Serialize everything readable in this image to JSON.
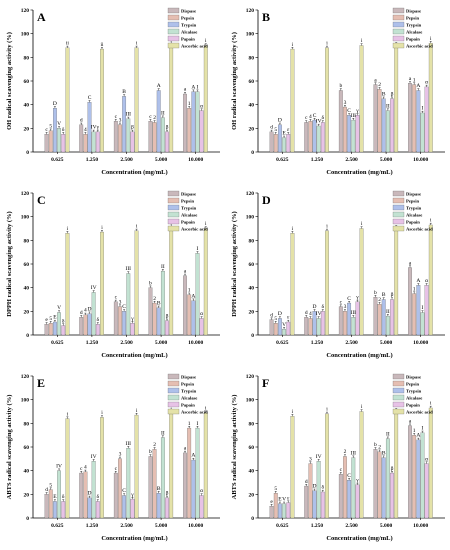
{
  "figure": {
    "x_axis_title": "Concentration (mg/mL)",
    "legend": [
      "Dispase",
      "Pepsin",
      "Trypsin",
      "Alcalase",
      "Papain",
      "Ascorbic acid"
    ]
  },
  "colors": {
    "Dispase": "#c9b8bb",
    "Pepsin": "#e5beb2",
    "Trypsin": "#aec0ea",
    "Alcalase": "#c2e2d2",
    "Papain": "#e7c2e6",
    "Ascorbic acid": "#e4e2a8"
  },
  "chart_data": [
    {
      "type": "bar",
      "panel_label": "A",
      "ylabel": "OH radical scavenging activity (%)",
      "categories": [
        "0.625",
        "1.250",
        "2.500",
        "5.000",
        "10.000"
      ],
      "ylim": [
        0,
        120
      ],
      "yticks": [
        0,
        20,
        40,
        60,
        80,
        100,
        120
      ],
      "series": [
        {
          "name": "Dispase",
          "values": [
            15,
            23,
            26,
            26,
            49
          ],
          "labels": [
            "c",
            "d",
            "c",
            "c",
            "a"
          ]
        },
        {
          "name": "Pepsin",
          "values": [
            18,
            15,
            23,
            25,
            37
          ],
          "labels": [
            "5",
            "4",
            "3",
            "2",
            "1"
          ]
        },
        {
          "name": "Trypsin",
          "values": [
            37,
            42,
            47,
            52,
            51
          ],
          "labels": [
            "D",
            "C",
            "B",
            "A",
            "A"
          ]
        },
        {
          "name": "Alcalase",
          "values": [
            20,
            17,
            28,
            29,
            51
          ],
          "labels": [
            "V",
            "IV",
            "III",
            "II",
            "I"
          ]
        },
        {
          "name": "Papain",
          "values": [
            15,
            17,
            17,
            17,
            35
          ],
          "labels": [
            "δ",
            "γ",
            "β",
            "β",
            "α"
          ]
        },
        {
          "name": "Ascorbic acid",
          "values": [
            88,
            87,
            88,
            89,
            90
          ],
          "labels": [
            "ii",
            "ii",
            "i",
            "i",
            "i"
          ]
        }
      ]
    },
    {
      "type": "bar",
      "panel_label": "B",
      "ylabel": "OH radical scavenging activity (%)",
      "categories": [
        "0.625",
        "1.250",
        "2.500",
        "5.000",
        "10.000"
      ],
      "ylim": [
        0,
        120
      ],
      "yticks": [
        0,
        20,
        40,
        60,
        80,
        100,
        120
      ],
      "series": [
        {
          "name": "Dispase",
          "values": [
            17,
            25,
            52,
            57,
            58
          ],
          "labels": [
            "d",
            "c",
            "b",
            "a",
            "a"
          ]
        },
        {
          "name": "Pepsin",
          "values": [
            15,
            26,
            38,
            53,
            57
          ],
          "labels": [
            "5",
            "4",
            "3",
            "2",
            "1"
          ]
        },
        {
          "name": "Trypsin",
          "values": [
            23,
            27,
            31,
            45,
            52
          ],
          "labels": [
            "D",
            "C",
            "C",
            "B",
            "A"
          ]
        },
        {
          "name": "Alcalase",
          "values": [
            12,
            22,
            27,
            35,
            33
          ],
          "labels": [
            "E",
            "IV",
            "III",
            "II",
            "I"
          ]
        },
        {
          "name": "Papain",
          "values": [
            15,
            25,
            31,
            45,
            55
          ],
          "labels": [
            "ε",
            "δ",
            "γ",
            "β",
            "α"
          ]
        },
        {
          "name": "Ascorbic acid",
          "values": [
            87,
            88,
            90,
            91,
            92
          ],
          "labels": [
            "i",
            "i",
            "i",
            "i",
            "i"
          ]
        }
      ]
    },
    {
      "type": "bar",
      "panel_label": "C",
      "ylabel": "DPPH radical scavenging activity (%)",
      "categories": [
        "0.625",
        "1.250",
        "2.500",
        "5.000",
        "10.000"
      ],
      "ylim": [
        0,
        120
      ],
      "yticks": [
        0,
        20,
        40,
        60,
        80,
        100,
        120
      ],
      "series": [
        {
          "name": "Dispase",
          "values": [
            9,
            15,
            28,
            40,
            50
          ],
          "labels": [
            "e",
            "d",
            "c",
            "b",
            "a"
          ]
        },
        {
          "name": "Pepsin",
          "values": [
            10,
            17,
            24,
            27,
            34
          ],
          "labels": [
            "5",
            "4",
            "3",
            "2",
            "1"
          ]
        },
        {
          "name": "Trypsin",
          "values": [
            11,
            18,
            20,
            23,
            29
          ],
          "labels": [
            "E",
            "D",
            "C",
            "B",
            "A"
          ]
        },
        {
          "name": "Alcalase",
          "values": [
            19,
            36,
            52,
            54,
            69
          ],
          "labels": [
            "V",
            "IV",
            "III",
            "II",
            "I"
          ]
        },
        {
          "name": "Papain",
          "values": [
            8,
            9,
            10,
            12,
            14
          ],
          "labels": [
            "δ",
            "δ",
            "γ",
            "β",
            "α"
          ]
        },
        {
          "name": "Ascorbic acid",
          "values": [
            86,
            87,
            88,
            89,
            90
          ],
          "labels": [
            "i",
            "i",
            "i",
            "i",
            "i"
          ]
        }
      ]
    },
    {
      "type": "bar",
      "panel_label": "D",
      "ylabel": "DPPH radical scavenging activity (%)",
      "categories": [
        "0.625",
        "1.250",
        "2.500",
        "5.000",
        "10.000"
      ],
      "ylim": [
        0,
        120
      ],
      "yticks": [
        0,
        20,
        40,
        60,
        80,
        100,
        120
      ],
      "series": [
        {
          "name": "Dispase",
          "values": [
            13,
            15,
            24,
            32,
            57
          ],
          "labels": [
            "d",
            "d",
            "c",
            "b",
            "a"
          ]
        },
        {
          "name": "Pepsin",
          "values": [
            10,
            14,
            20,
            26,
            35
          ],
          "labels": [
            "5",
            "4",
            "3",
            "2",
            "1"
          ]
        },
        {
          "name": "Trypsin",
          "values": [
            14,
            20,
            27,
            30,
            42
          ],
          "labels": [
            "D",
            "D",
            "C",
            "B",
            "A"
          ]
        },
        {
          "name": "Alcalase",
          "values": [
            5,
            14,
            15,
            16,
            19
          ],
          "labels": [
            "V",
            "IV",
            "III",
            "II",
            "I"
          ]
        },
        {
          "name": "Papain",
          "values": [
            11,
            20,
            28,
            30,
            42
          ],
          "labels": [
            "ε",
            "δ",
            "γ",
            "β",
            "α"
          ]
        },
        {
          "name": "Ascorbic acid",
          "values": [
            86,
            88,
            90,
            91,
            93
          ],
          "labels": [
            "i",
            "i",
            "i",
            "i",
            "i"
          ]
        }
      ]
    },
    {
      "type": "bar",
      "panel_label": "E",
      "ylabel": "ABTS radical scavenging activity (%)",
      "categories": [
        "0.625",
        "1.250",
        "2.500",
        "5.000",
        "10.000"
      ],
      "ylim": [
        0,
        120
      ],
      "yticks": [
        0,
        20,
        40,
        60,
        80,
        100,
        120
      ],
      "series": [
        {
          "name": "Dispase",
          "values": [
            20,
            38,
            38,
            52,
            55
          ],
          "labels": [
            "d",
            "c",
            "c",
            "b",
            "a"
          ]
        },
        {
          "name": "Pepsin",
          "values": [
            24,
            39,
            50,
            58,
            76
          ],
          "labels": [
            "5",
            "4",
            "3",
            "2",
            "1"
          ]
        },
        {
          "name": "Trypsin",
          "values": [
            14,
            17,
            19,
            21,
            49
          ],
          "labels": [
            "E",
            "D",
            "C",
            "B",
            "A"
          ]
        },
        {
          "name": "Alcalase",
          "values": [
            40,
            48,
            59,
            68,
            76
          ],
          "labels": [
            "IV",
            "IV",
            "III",
            "II",
            "I"
          ]
        },
        {
          "name": "Papain",
          "values": [
            14,
            14,
            16,
            17,
            19
          ],
          "labels": [
            "δ",
            "δ",
            "γ",
            "β",
            "α"
          ]
        },
        {
          "name": "Ascorbic acid",
          "values": [
            84,
            85,
            87,
            88,
            89
          ],
          "labels": [
            "i",
            "i",
            "i",
            "i",
            "i"
          ]
        }
      ]
    },
    {
      "type": "bar",
      "panel_label": "F",
      "ylabel": "ABTS radical scavenging activity (%)",
      "categories": [
        "0.625",
        "1.250",
        "2.500",
        "5.000",
        "10.000"
      ],
      "ylim": [
        0,
        120
      ],
      "yticks": [
        0,
        20,
        40,
        60,
        80,
        100,
        120
      ],
      "series": [
        {
          "name": "Dispase",
          "values": [
            10,
            27,
            37,
            58,
            78
          ],
          "labels": [
            "e",
            "d",
            "c",
            "b",
            "a"
          ]
        },
        {
          "name": "Pepsin",
          "values": [
            21,
            46,
            52,
            56,
            70
          ],
          "labels": [
            "5",
            "3",
            "2",
            "2",
            "1"
          ]
        },
        {
          "name": "Trypsin",
          "values": [
            12,
            23,
            32,
            51,
            66
          ],
          "labels": [
            "E",
            "D",
            "C",
            "B",
            "A"
          ]
        },
        {
          "name": "Alcalase",
          "values": [
            12,
            48,
            51,
            67,
            72
          ],
          "labels": [
            "V",
            "IV",
            "III",
            "II",
            "I"
          ]
        },
        {
          "name": "Papain",
          "values": [
            13,
            22,
            28,
            38,
            46
          ],
          "labels": [
            "ε",
            "δ",
            "γ",
            "β",
            "α"
          ]
        },
        {
          "name": "Ascorbic acid",
          "values": [
            86,
            88,
            90,
            91,
            93
          ],
          "labels": [
            "i",
            "i",
            "i",
            "i",
            "i"
          ]
        }
      ]
    }
  ]
}
